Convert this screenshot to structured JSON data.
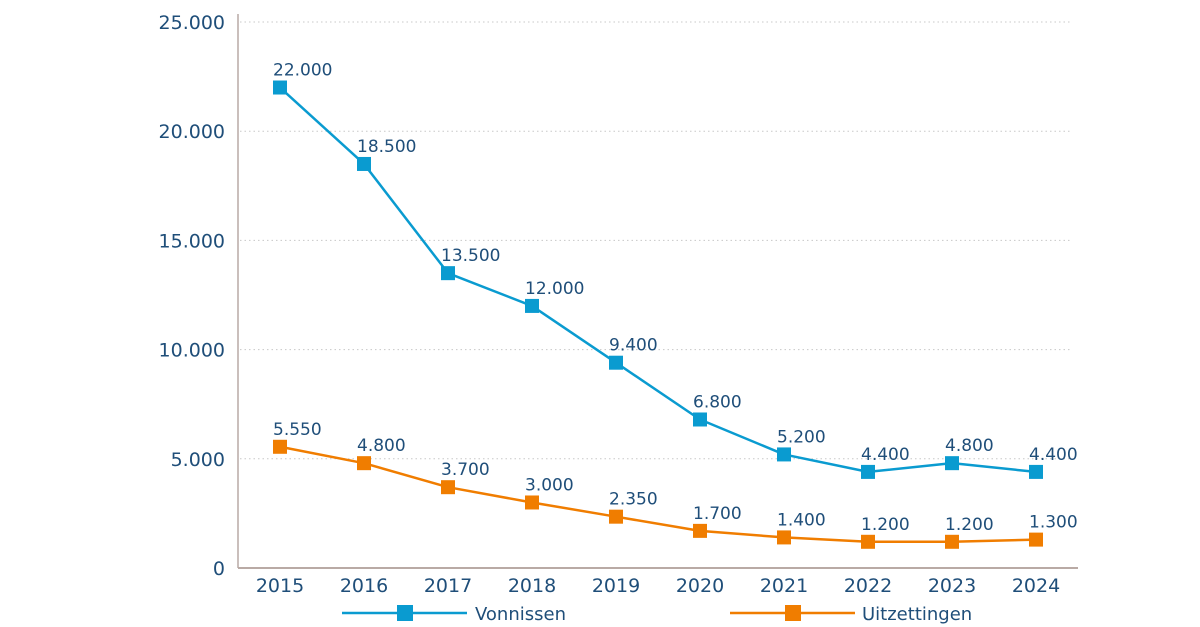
{
  "chart_data": {
    "type": "line",
    "title": "",
    "xlabel": "",
    "ylabel": "",
    "categories": [
      "2015",
      "2016",
      "2017",
      "2018",
      "2019",
      "2020",
      "2021",
      "2022",
      "2023",
      "2024"
    ],
    "ylim": [
      0,
      25000
    ],
    "yticks": [
      0,
      5000,
      10000,
      15000,
      20000,
      25000
    ],
    "ytick_labels": [
      "0",
      "5.000",
      "10.000",
      "15.000",
      "20.000",
      "25.000"
    ],
    "grid": "horizontal-dotted",
    "legend_position": "bottom",
    "series": [
      {
        "name": "Vonnissen",
        "color": "#0a9bd0",
        "marker": "square",
        "values": [
          22000,
          18500,
          13500,
          12000,
          9400,
          6800,
          5200,
          4400,
          4800,
          4400
        ],
        "labels": [
          "22.000",
          "18.500",
          "13.500",
          "12.000",
          "9.400",
          "6.800",
          "5.200",
          "4.400",
          "4.800",
          "4.400"
        ]
      },
      {
        "name": "Uitzettingen",
        "color": "#f07d00",
        "marker": "square",
        "values": [
          5550,
          4800,
          3700,
          3000,
          2350,
          1700,
          1400,
          1200,
          1200,
          1300
        ],
        "labels": [
          "5.550",
          "4.800",
          "3.700",
          "3.000",
          "2.350",
          "1.700",
          "1.400",
          "1.200",
          "1.200",
          "1.300"
        ]
      }
    ],
    "colors": {
      "text": "#1f4e79",
      "axis": "#b9aaa5",
      "grid": "#c8c8c8"
    }
  }
}
